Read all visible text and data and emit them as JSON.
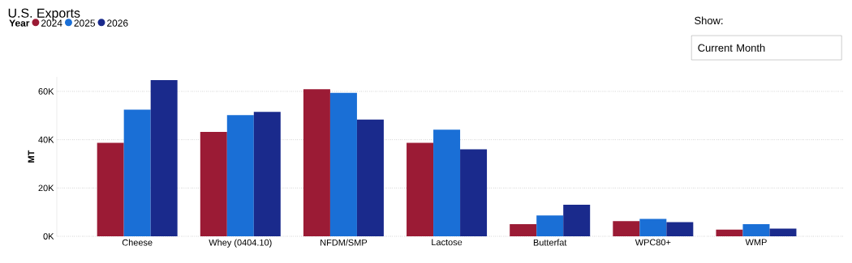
{
  "chart_data": {
    "type": "bar",
    "title": "U.S. Exports",
    "ylabel": "MT",
    "legend_title": "Year",
    "annotations": [
      "Show:",
      "Current Month"
    ],
    "categories": [
      "Cheese",
      "Whey (0404.10)",
      "NFDM/SMP",
      "Lactose",
      "Butterfat",
      "WPC80+",
      "WMP"
    ],
    "series": [
      {
        "name": "2024",
        "color": "#9b1b35",
        "values": [
          38700,
          43200,
          60900,
          38700,
          5000,
          6300,
          2800
        ]
      },
      {
        "name": "2025",
        "color": "#1a6fd6",
        "values": [
          52400,
          50200,
          59400,
          44100,
          8600,
          7200,
          5000
        ]
      },
      {
        "name": "2026",
        "color": "#1a2a8c",
        "values": [
          64700,
          51500,
          48300,
          36000,
          13100,
          5900,
          3200
        ]
      }
    ],
    "ylim": [
      0,
      66000
    ],
    "yticks": [
      {
        "value": 0,
        "label": "0K"
      },
      {
        "value": 20000,
        "label": "20K"
      },
      {
        "value": 40000,
        "label": "40K"
      },
      {
        "value": 60000,
        "label": "60K"
      }
    ],
    "grid": "y",
    "legend": "top left"
  }
}
